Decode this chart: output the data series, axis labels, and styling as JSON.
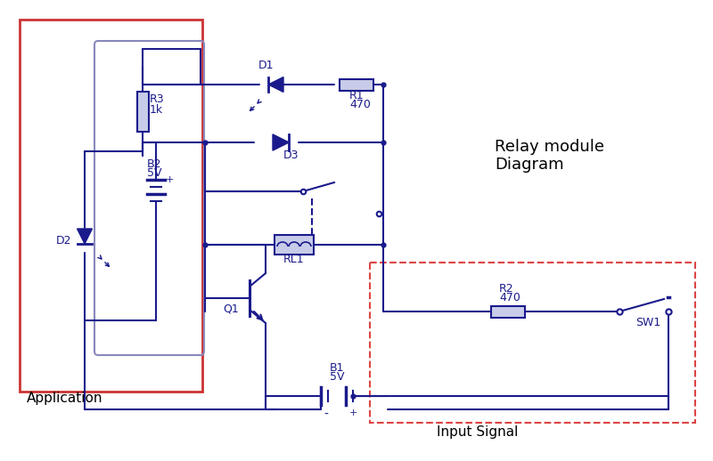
{
  "background": "#ffffff",
  "lc": "#1a1a8c",
  "lc_light": "#8888bb",
  "red_solid": "#cc3333",
  "red_dash": "#dd4444",
  "comp_fill": "#c8cce8",
  "title": "Relay module\nDiagram",
  "label_app": "Application",
  "label_input": "Input Signal",
  "figsize": [
    8.0,
    5.18
  ],
  "dpi": 100
}
